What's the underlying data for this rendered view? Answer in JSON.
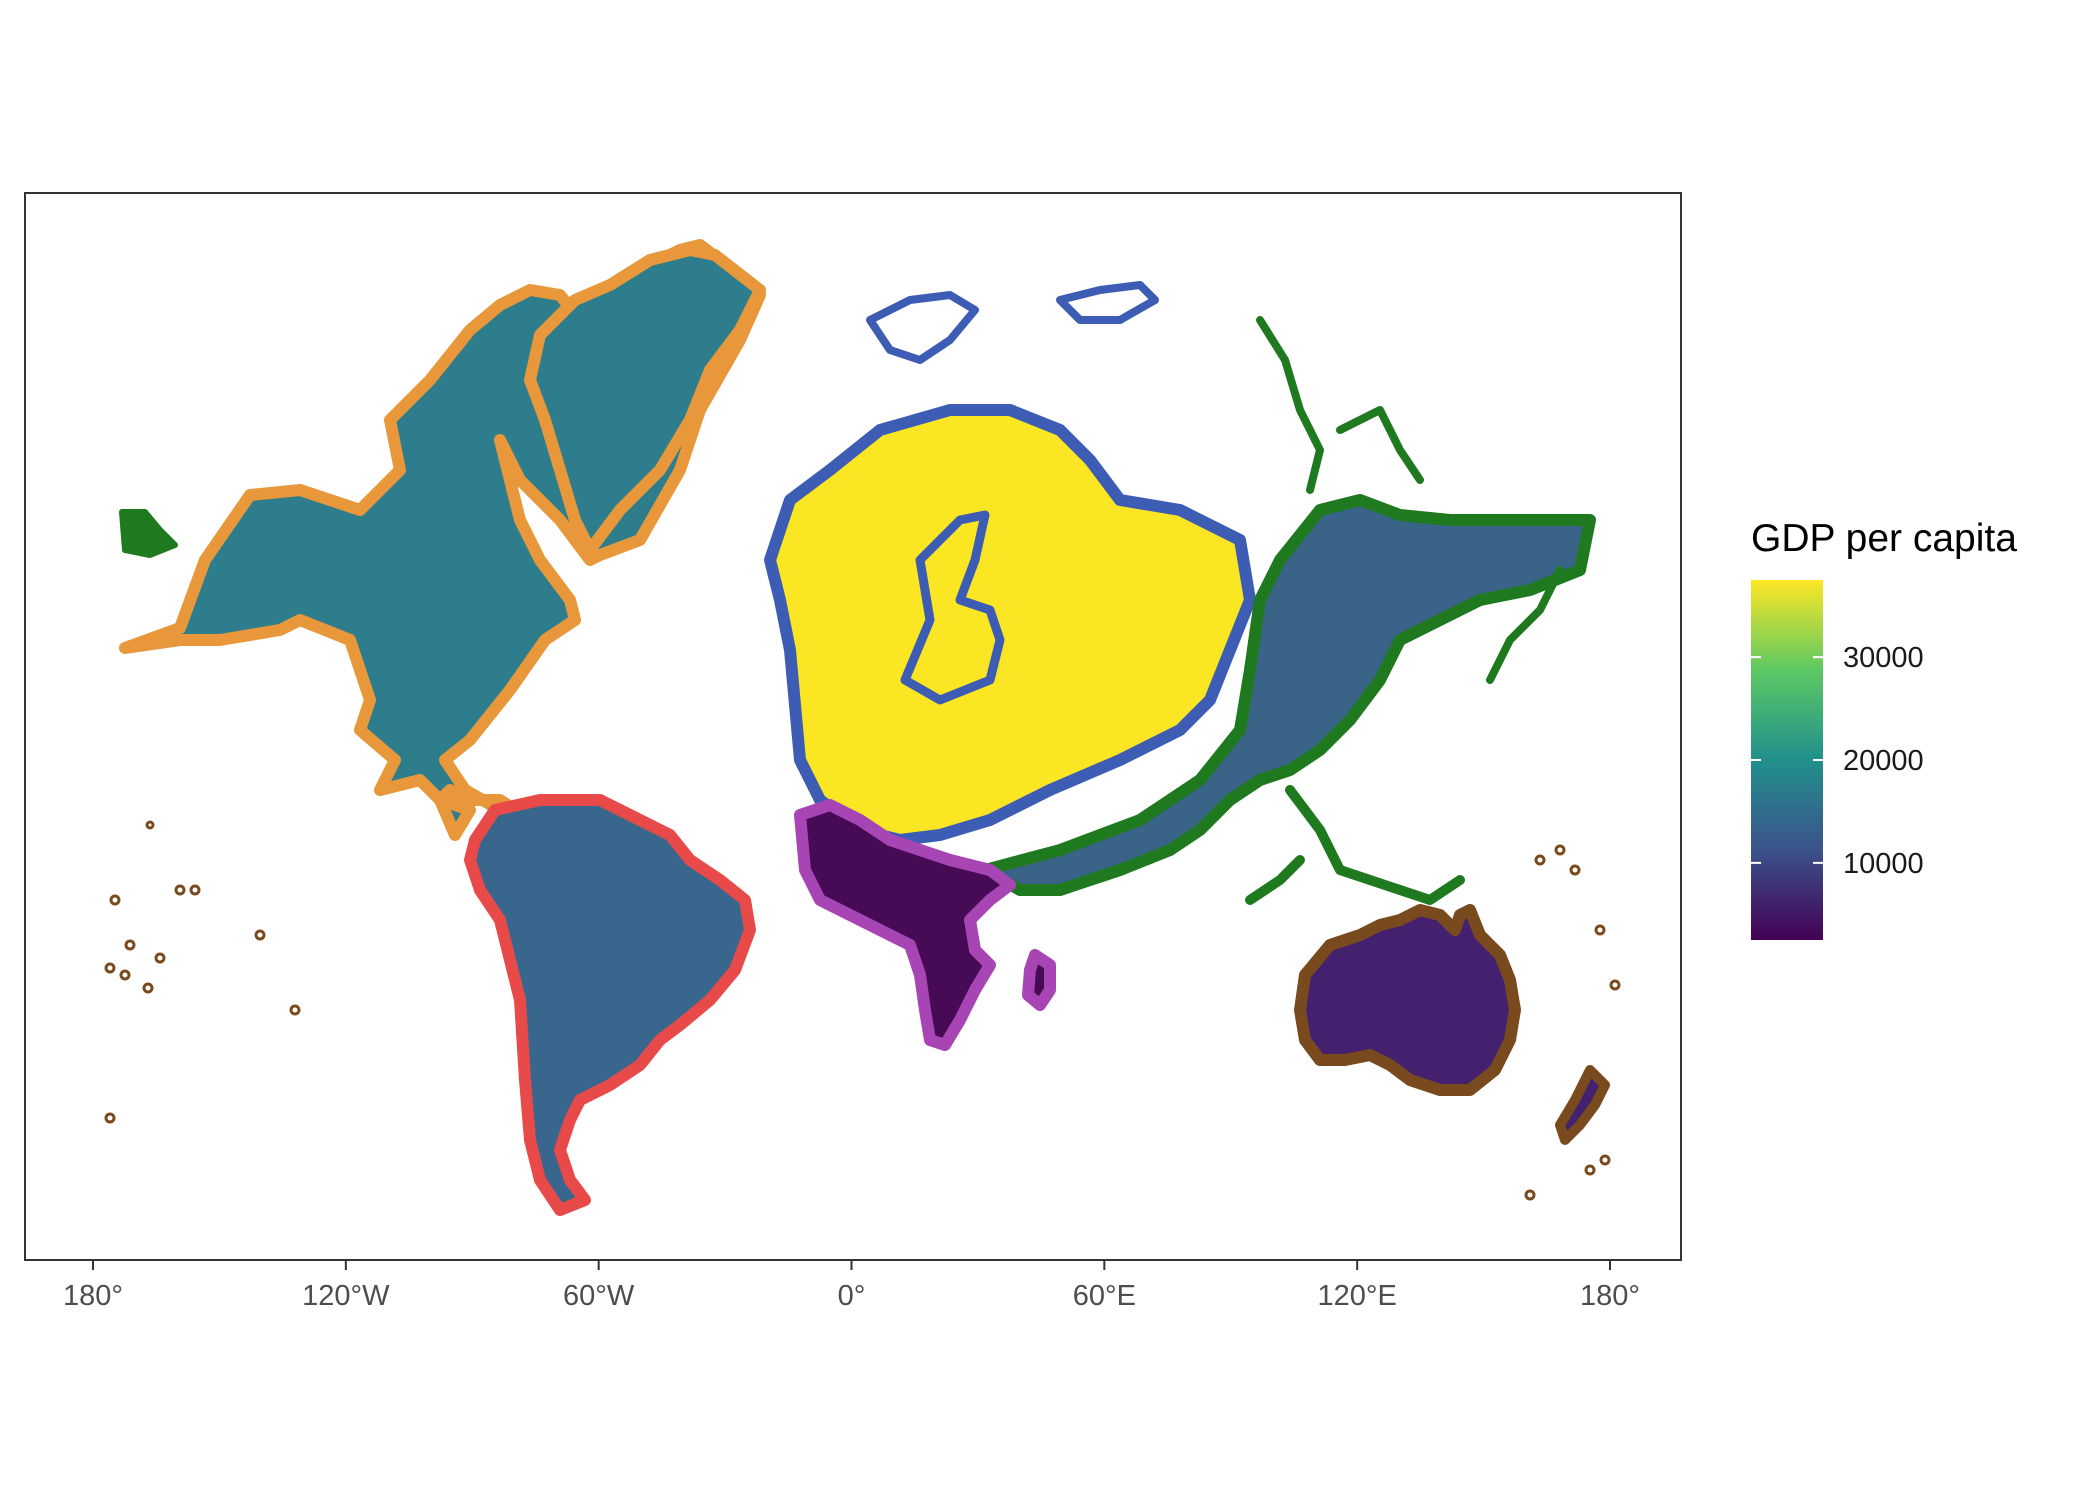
{
  "chart_data": {
    "type": "map",
    "title": "",
    "projection": "distorted world map (continent areas scaled)",
    "x_axis": {
      "ticks": [
        {
          "value": -180,
          "label": "180°"
        },
        {
          "value": -120,
          "label": "120°W"
        },
        {
          "value": -60,
          "label": "60°W"
        },
        {
          "value": 0,
          "label": "0°"
        },
        {
          "value": 60,
          "label": "60°E"
        },
        {
          "value": 120,
          "label": "120°E"
        },
        {
          "value": 180,
          "label": "180°"
        }
      ]
    },
    "legend": {
      "title": "GDP per capita",
      "type": "continuous",
      "palette": "viridis",
      "range": [
        2500,
        37500
      ],
      "breaks": [
        {
          "value": 10000,
          "label": "10000"
        },
        {
          "value": 20000,
          "label": "20000"
        },
        {
          "value": 30000,
          "label": "30000"
        }
      ],
      "gradient_colors": [
        "#440154",
        "#3b528b",
        "#21908c",
        "#5dc863",
        "#fde725"
      ],
      "placement": "right"
    },
    "regions": [
      {
        "name": "North America",
        "fill": "#2d7d8c",
        "outline": "#e8983a",
        "gdp_per_capita": 18000
      },
      {
        "name": "South America",
        "fill": "#38668c",
        "outline": "#e84a4a",
        "gdp_per_capita": 14000
      },
      {
        "name": "Europe",
        "fill": "#fbe623",
        "outline": "#3d5db4",
        "gdp_per_capita": 37500
      },
      {
        "name": "Asia",
        "fill": "#3a6388",
        "outline": "#1f7a1f",
        "gdp_per_capita": 13500
      },
      {
        "name": "Africa",
        "fill": "#470b55",
        "outline": "#a845b4",
        "gdp_per_capita": 3000
      },
      {
        "name": "Oceania",
        "fill": "#44216e",
        "outline": "#7a4a1f",
        "gdp_per_capita": 6500
      }
    ]
  }
}
